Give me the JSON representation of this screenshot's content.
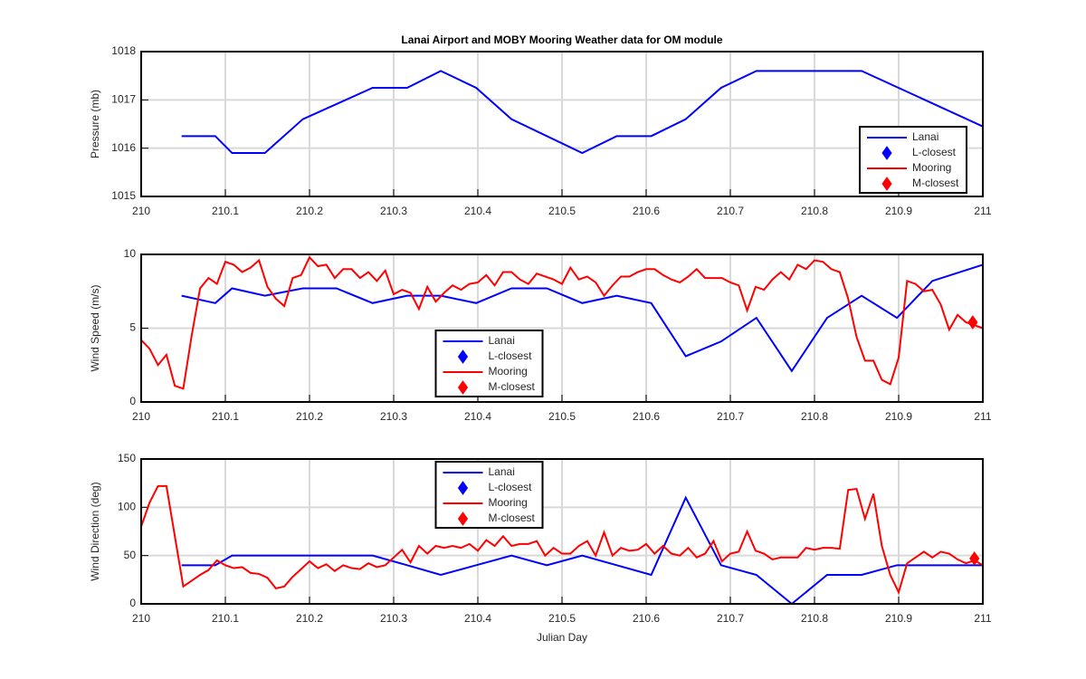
{
  "chart_data": [
    {
      "type": "line",
      "title": "Lanai Airport and MOBY Mooring Weather data for OM module",
      "ylabel": "Pressure (mb)",
      "xlim": [
        210,
        211
      ],
      "xticks": [
        210,
        210.1,
        210.2,
        210.3,
        210.4,
        210.5,
        210.6,
        210.7,
        210.8,
        210.9,
        211
      ],
      "ylim": [
        1015,
        1018
      ],
      "yticks": [
        1015,
        1016,
        1017,
        1018
      ],
      "grid": true,
      "legend": "southeast",
      "series": [
        {
          "name": "Lanai",
          "color": "#0000ff",
          "marker": "none",
          "x": [
            210.048,
            210.088,
            210.108,
            210.147,
            210.192,
            210.275,
            210.316,
            210.356,
            210.398,
            210.44,
            210.524,
            210.565,
            210.606,
            210.647,
            210.689,
            210.731,
            210.856,
            211
          ],
          "values": [
            1016.25,
            1016.25,
            1015.9,
            1015.9,
            1016.6,
            1017.25,
            1017.25,
            1017.6,
            1017.25,
            1016.6,
            1015.9,
            1016.25,
            1016.25,
            1016.6,
            1017.25,
            1017.6,
            1017.6,
            1016.45
          ]
        },
        {
          "name": "L-closest",
          "color": "#0000ff",
          "marker": "diamond",
          "x": [],
          "values": []
        },
        {
          "name": "Mooring",
          "color": "#ff0000",
          "marker": "none",
          "x": [],
          "values": []
        },
        {
          "name": "M-closest",
          "color": "#ff0000",
          "marker": "diamond",
          "x": [],
          "values": []
        }
      ]
    },
    {
      "type": "line",
      "ylabel": "Wind Speed (m/s)",
      "xlim": [
        210,
        211
      ],
      "xticks": [
        210,
        210.1,
        210.2,
        210.3,
        210.4,
        210.5,
        210.6,
        210.7,
        210.8,
        210.9,
        211
      ],
      "ylim": [
        0,
        10
      ],
      "yticks": [
        0,
        5,
        10
      ],
      "grid": true,
      "legend": "south",
      "series": [
        {
          "name": "Lanai",
          "color": "#0000ff",
          "marker": "none",
          "x": [
            210.048,
            210.088,
            210.108,
            210.147,
            210.192,
            210.232,
            210.275,
            210.316,
            210.356,
            210.398,
            210.44,
            210.482,
            210.524,
            210.565,
            210.606,
            210.647,
            210.689,
            210.731,
            210.773,
            210.815,
            210.856,
            210.898,
            210.94,
            211
          ],
          "values": [
            7.2,
            6.7,
            7.7,
            7.2,
            7.7,
            7.7,
            6.7,
            7.2,
            7.2,
            6.7,
            7.7,
            7.7,
            6.7,
            7.2,
            6.7,
            3.1,
            4.1,
            5.7,
            2.1,
            5.7,
            7.2,
            5.7,
            8.2,
            9.3
          ]
        },
        {
          "name": "L-closest",
          "color": "#0000ff",
          "marker": "diamond",
          "x": [],
          "values": []
        },
        {
          "name": "Mooring",
          "color": "#ff0000",
          "marker": "none",
          "x": [
            210,
            210.01,
            210.02,
            210.03,
            210.04,
            210.05,
            210.06,
            210.07,
            210.08,
            210.09,
            210.1,
            210.11,
            210.12,
            210.13,
            210.14,
            210.15,
            210.16,
            210.17,
            210.18,
            210.19,
            210.2,
            210.21,
            210.22,
            210.23,
            210.24,
            210.25,
            210.26,
            210.27,
            210.28,
            210.29,
            210.3,
            210.31,
            210.32,
            210.33,
            210.34,
            210.35,
            210.36,
            210.37,
            210.38,
            210.39,
            210.4,
            210.41,
            210.42,
            210.43,
            210.44,
            210.45,
            210.46,
            210.47,
            210.48,
            210.49,
            210.5,
            210.51,
            210.52,
            210.53,
            210.54,
            210.55,
            210.56,
            210.57,
            210.58,
            210.59,
            210.6,
            210.61,
            210.62,
            210.63,
            210.64,
            210.65,
            210.66,
            210.67,
            210.68,
            210.69,
            210.7,
            210.71,
            210.72,
            210.73,
            210.74,
            210.75,
            210.76,
            210.77,
            210.78,
            210.79,
            210.8,
            210.81,
            210.82,
            210.83,
            210.84,
            210.85,
            210.86,
            210.87,
            210.88,
            210.89,
            210.9,
            210.91,
            210.92,
            210.93,
            210.94,
            210.95,
            210.96,
            210.97,
            210.98,
            210.99,
            211
          ],
          "values": [
            4.2,
            3.6,
            2.5,
            3.2,
            1.1,
            0.9,
            4.5,
            7.7,
            8.4,
            8.0,
            9.5,
            9.3,
            8.8,
            9.1,
            9.6,
            7.8,
            7.0,
            6.5,
            8.4,
            8.6,
            9.8,
            9.2,
            9.3,
            8.4,
            9.0,
            9.0,
            8.4,
            8.8,
            8.2,
            8.9,
            7.3,
            7.6,
            7.4,
            6.3,
            7.8,
            6.8,
            7.4,
            7.9,
            7.6,
            8.0,
            8.1,
            8.6,
            7.9,
            8.8,
            8.8,
            8.3,
            8.0,
            8.7,
            8.5,
            8.3,
            8.0,
            9.1,
            8.3,
            8.5,
            8.1,
            7.2,
            7.9,
            8.5,
            8.5,
            8.8,
            9.0,
            9.0,
            8.6,
            8.3,
            8.1,
            8.5,
            9.0,
            8.4,
            8.4,
            8.4,
            8.1,
            7.9,
            6.2,
            7.8,
            7.6,
            8.3,
            8.8,
            8.3,
            9.3,
            9.0,
            9.6,
            9.5,
            9.0,
            8.8,
            7.0,
            4.4,
            2.8,
            2.8,
            1.5,
            1.2,
            3.0,
            8.2,
            8.0,
            7.5,
            7.6,
            6.6,
            4.9,
            5.9,
            5.4,
            5.2,
            5.0
          ]
        },
        {
          "name": "M-closest",
          "color": "#ff0000",
          "marker": "diamond",
          "x": [
            210.988
          ],
          "values": [
            5.4
          ]
        }
      ]
    },
    {
      "type": "line",
      "ylabel": "Wind Direction (deg)",
      "xlabel": "Julian Day",
      "xlim": [
        210,
        211
      ],
      "xticks": [
        210,
        210.1,
        210.2,
        210.3,
        210.4,
        210.5,
        210.6,
        210.7,
        210.8,
        210.9,
        211
      ],
      "ylim": [
        0,
        150
      ],
      "yticks": [
        0,
        50,
        100,
        150
      ],
      "grid": true,
      "legend": "north",
      "series": [
        {
          "name": "Lanai",
          "color": "#0000ff",
          "marker": "none",
          "x": [
            210.048,
            210.088,
            210.108,
            210.147,
            210.192,
            210.232,
            210.275,
            210.316,
            210.356,
            210.398,
            210.44,
            210.482,
            210.524,
            210.565,
            210.606,
            210.647,
            210.689,
            210.731,
            210.773,
            210.815,
            210.856,
            210.898,
            210.94,
            211
          ],
          "values": [
            40,
            40,
            50,
            50,
            50,
            50,
            50,
            40,
            30,
            40,
            50,
            40,
            50,
            40,
            30,
            110,
            40,
            30,
            0,
            30,
            30,
            40,
            40,
            40
          ]
        },
        {
          "name": "L-closest",
          "color": "#0000ff",
          "marker": "diamond",
          "x": [],
          "values": []
        },
        {
          "name": "Mooring",
          "color": "#ff0000",
          "marker": "none",
          "x": [
            210,
            210.01,
            210.02,
            210.03,
            210.04,
            210.05,
            210.06,
            210.07,
            210.08,
            210.09,
            210.1,
            210.11,
            210.12,
            210.13,
            210.14,
            210.15,
            210.16,
            210.17,
            210.18,
            210.19,
            210.2,
            210.21,
            210.22,
            210.23,
            210.24,
            210.25,
            210.26,
            210.27,
            210.28,
            210.29,
            210.3,
            210.31,
            210.32,
            210.33,
            210.34,
            210.35,
            210.36,
            210.37,
            210.38,
            210.39,
            210.4,
            210.41,
            210.42,
            210.43,
            210.44,
            210.45,
            210.46,
            210.47,
            210.48,
            210.49,
            210.5,
            210.51,
            210.52,
            210.53,
            210.54,
            210.55,
            210.56,
            210.57,
            210.58,
            210.59,
            210.6,
            210.61,
            210.62,
            210.63,
            210.64,
            210.65,
            210.66,
            210.67,
            210.68,
            210.69,
            210.7,
            210.71,
            210.72,
            210.73,
            210.74,
            210.75,
            210.76,
            210.77,
            210.78,
            210.79,
            210.8,
            210.81,
            210.82,
            210.83,
            210.84,
            210.85,
            210.86,
            210.87,
            210.88,
            210.89,
            210.9,
            210.91,
            210.92,
            210.93,
            210.94,
            210.95,
            210.96,
            210.97,
            210.98,
            210.99,
            211
          ],
          "values": [
            80,
            105,
            122,
            122,
            70,
            18,
            24,
            30,
            35,
            45,
            40,
            37,
            38,
            32,
            31,
            27,
            16,
            18,
            28,
            36,
            44,
            37,
            41,
            34,
            40,
            37,
            36,
            42,
            38,
            40,
            48,
            56,
            43,
            60,
            52,
            60,
            58,
            60,
            58,
            62,
            55,
            66,
            60,
            70,
            60,
            62,
            62,
            65,
            50,
            58,
            52,
            52,
            60,
            65,
            50,
            74,
            50,
            58,
            55,
            56,
            62,
            52,
            60,
            52,
            50,
            58,
            48,
            52,
            65,
            44,
            52,
            54,
            75,
            55,
            52,
            46,
            48,
            48,
            48,
            58,
            56,
            58,
            58,
            57,
            118,
            119,
            88,
            114,
            60,
            30,
            12,
            42,
            48,
            54,
            48,
            54,
            52,
            46,
            42,
            45,
            40
          ]
        },
        {
          "name": "M-closest",
          "color": "#ff0000",
          "marker": "diamond",
          "x": [
            210.99
          ],
          "values": [
            47
          ]
        }
      ]
    }
  ]
}
